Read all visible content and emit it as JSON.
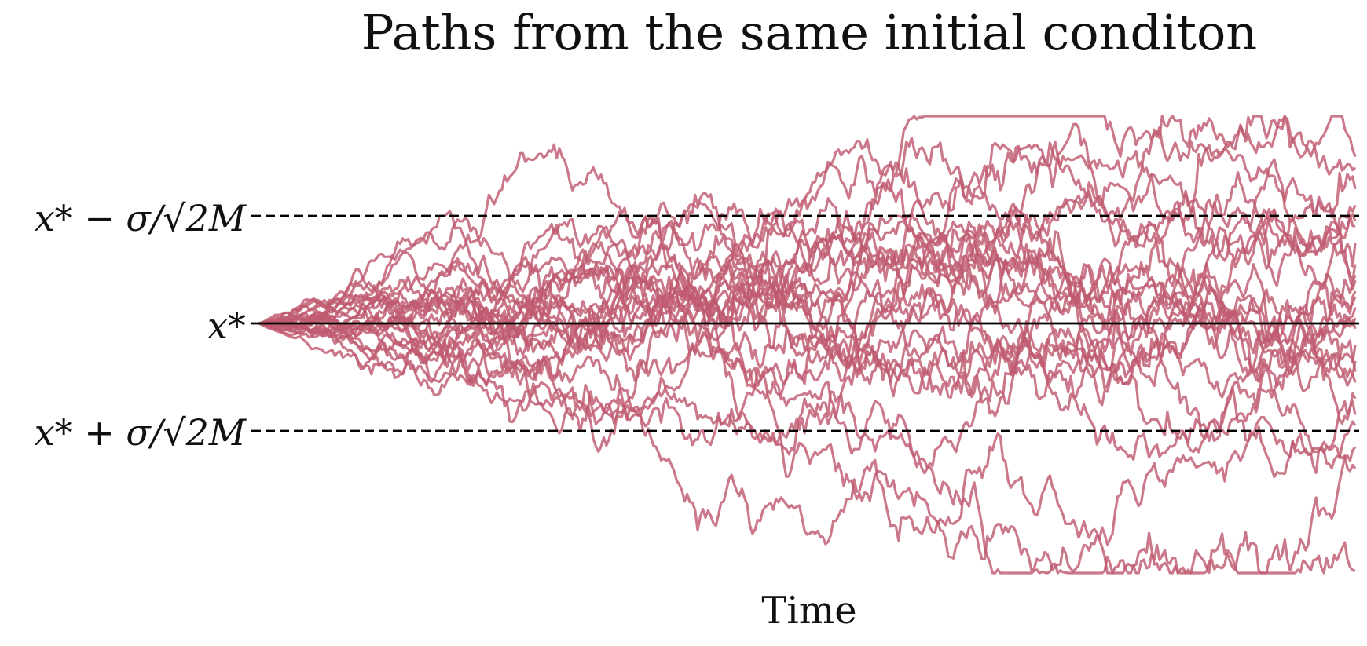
{
  "chart_data": {
    "type": "line",
    "title": "Paths from the same initial conditon",
    "xlabel": "Time",
    "ylabel": "",
    "x": [
      0,
      1
    ],
    "ylim": [
      -2.0,
      2.0
    ],
    "y_inverted": true,
    "num_paths": 25,
    "path_start": 0,
    "path_end_values": [
      -1.55,
      -1.45,
      -1.25,
      -1.1,
      -0.95,
      -0.9,
      -0.75,
      -0.55,
      -0.45,
      -0.4,
      -0.3,
      -0.25,
      -0.15,
      -0.05,
      0.05,
      0.2,
      0.35,
      0.45,
      0.55,
      0.7,
      0.85,
      0.95,
      1.15,
      1.35,
      2.3
    ],
    "path_color": "#c05a70",
    "grid": false,
    "legend": "none",
    "reference_lines": [
      {
        "label": "x* − σ/√2M",
        "y": -1,
        "style": "dashed",
        "color": "#000000"
      },
      {
        "label": "x*",
        "y": 0,
        "style": "solid",
        "color": "#000000"
      },
      {
        "label": "x* + σ/√2M",
        "y": 1,
        "style": "dashed",
        "color": "#000000"
      }
    ]
  }
}
